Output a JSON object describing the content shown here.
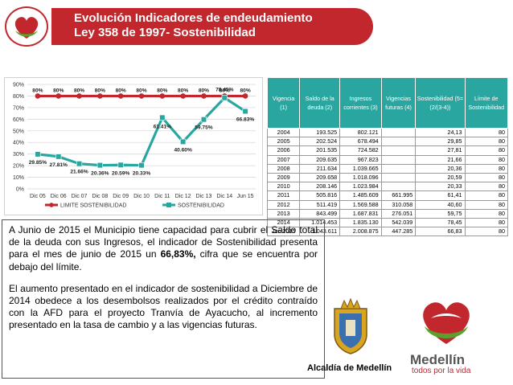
{
  "header": {
    "title_line1": "Evolución Indicadores de endeudamiento",
    "title_line2": "Ley 358 de 1997- Sostenibilidad"
  },
  "colors": {
    "brand_red": "#c1272d",
    "teal": "#2aa6a0",
    "brand_green": "#5aa02c"
  },
  "chart_data": {
    "type": "line",
    "categories": [
      "Dic 05",
      "Dic 06",
      "Dic 07",
      "Dic 08",
      "Dic 09",
      "Dic 10",
      "Dic 11",
      "Dic 12",
      "Dic 13",
      "Dic 14",
      "Jun 15"
    ],
    "y_ticks": [
      "0%",
      "10%",
      "20%",
      "30%",
      "40%",
      "50%",
      "60%",
      "70%",
      "80%",
      "90%"
    ],
    "ylim": [
      0,
      90
    ],
    "grid": true,
    "legend_position": "bottom",
    "series": [
      {
        "name": "LIMITE SOSTENIBILIDAD",
        "color": "#c1272d",
        "marker": "circle",
        "values": [
          80,
          80,
          80,
          80,
          80,
          80,
          80,
          80,
          80,
          80,
          80
        ],
        "labels": [
          "80%",
          "80%",
          "80%",
          "80%",
          "80%",
          "80%",
          "80%",
          "80%",
          "80%",
          "80%",
          "80%"
        ]
      },
      {
        "name": "SOSTENIBILIDAD",
        "color": "#2aa6a0",
        "marker": "square",
        "values": [
          29.85,
          27.81,
          21.66,
          20.36,
          20.59,
          20.33,
          61.41,
          40.6,
          59.75,
          78.45,
          66.83
        ],
        "labels": [
          "29.85%",
          "27.81%",
          "21.66%",
          "20.36%",
          "20.59%",
          "20.33%",
          "61.41%",
          "40.60%",
          "59.75%",
          "78.45%",
          "66.83%"
        ]
      }
    ]
  },
  "table": {
    "headers": [
      "Vigencia (1)",
      "Saldo de la deuda (2)",
      "Ingresos corrientes (3)",
      "Vigencias futuras (4)",
      "Sostenibilidad (5=(2/(3-4))",
      "Límite de Sostenibilidad"
    ],
    "rows": [
      [
        "2004",
        "193.525",
        "802.121",
        "",
        "24,13",
        "80"
      ],
      [
        "2005",
        "202.524",
        "678.494",
        "",
        "29,85",
        "80"
      ],
      [
        "2006",
        "201.535",
        "724.582",
        "",
        "27,81",
        "80"
      ],
      [
        "2007",
        "209.635",
        "967.823",
        "",
        "21,66",
        "80"
      ],
      [
        "2008",
        "211.634",
        "1.039.665",
        "",
        "20,36",
        "80"
      ],
      [
        "2009",
        "209.658",
        "1.018.096",
        "",
        "20,59",
        "80"
      ],
      [
        "2010",
        "208.146",
        "1.023.984",
        "",
        "20,33",
        "80"
      ],
      [
        "2011",
        "505.816",
        "1.485.609",
        "661.995",
        "61,41",
        "80"
      ],
      [
        "2012",
        "511.419",
        "1.569.588",
        "310.058",
        "40,60",
        "80"
      ],
      [
        "2013",
        "843.499",
        "1.687.831",
        "276.051",
        "59,75",
        "80"
      ],
      [
        "2014",
        "1.014.453",
        "1.835.130",
        "542.039",
        "78,45",
        "80"
      ],
      [
        "Jun 2015",
        "1.043.611",
        "2.008.875",
        "447.285",
        "66,83",
        "80"
      ]
    ]
  },
  "text_block": {
    "paragraph1": "A Junio de 2015 el Municipio tiene capacidad para cubrir el Saldo total de la deuda con sus Ingresos, el indicador de Sostenibilidad presenta para el mes de junio de 2015 un ",
    "paragraph1_bold": "66,83%,",
    "paragraph1_end": " cifra que se encuentra por debajo del límite.",
    "paragraph2": "El aumento presentado en el indicador de sostenibilidad a Diciembre de 2014 obedece a los desembolsos realizados por el crédito contraído con la AFD para el proyecto Tranvía de Ayacucho, al incremento presentado en la tasa de cambio y a las vigencias futuras."
  },
  "footer": {
    "alcaldia": "Alcaldía de Medellín",
    "brand": "Medellín",
    "slogan": "todos por la vida"
  }
}
